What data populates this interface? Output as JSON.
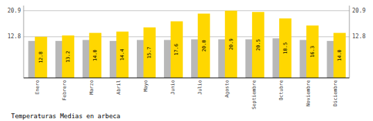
{
  "chart_data": {
    "type": "bar",
    "title": "Temperaturas Medias en arbeca",
    "categories": [
      "Enero",
      "Febrero",
      "Marzo",
      "Abril",
      "Mayo",
      "Junio",
      "Julio",
      "Agosto",
      "Septiembre",
      "Octubre",
      "Noviembre",
      "Diciembre"
    ],
    "series": [
      {
        "color": "#B8B8B8",
        "values": [
          11.5,
          11.5,
          11.8,
          11.5,
          11.8,
          11.8,
          12.0,
          12.0,
          12.0,
          12.3,
          11.8,
          11.5
        ]
      },
      {
        "color": "#FFD700",
        "values": [
          12.8,
          13.2,
          14.0,
          14.4,
          15.7,
          17.6,
          20.0,
          20.9,
          20.5,
          18.5,
          16.3,
          14.0
        ],
        "value_labels": [
          "12.8",
          "13.2",
          "14.0",
          "14.4",
          "15.7",
          "17.6",
          "20.0",
          "20.9",
          "20.5",
          "18.5",
          "16.3",
          "14.0"
        ],
        "data_labels": true
      }
    ],
    "ylim": [
      0,
      22.5
    ],
    "yticks": [
      12.8,
      20.9
    ],
    "y2lim": [
      0,
      22.5
    ],
    "y2ticks": [
      12.8,
      20.9
    ],
    "grid": true
  }
}
